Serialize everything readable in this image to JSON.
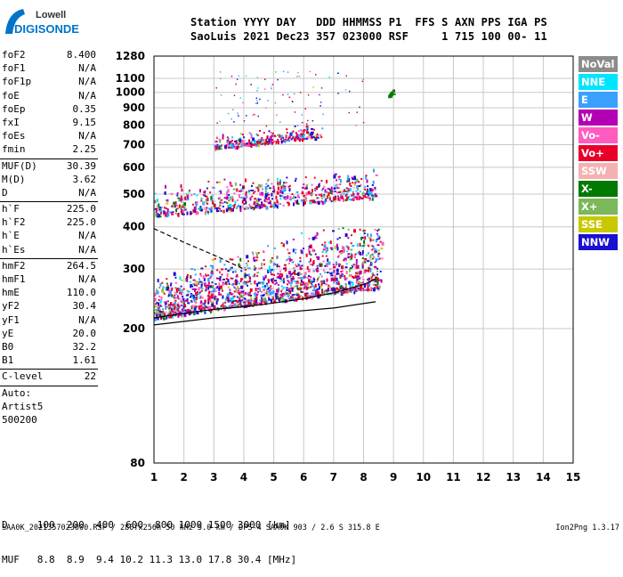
{
  "logo": {
    "line1": "Lowell",
    "line2": "DIGISONDE"
  },
  "header": {
    "line1": "Station YYYY DAY   DDD HHMMSS P1  FFS S AXN PPS IGA PS",
    "line2": "SaoLuis 2021 Dec23 357 023000 RSF     1 715 100 00- 11"
  },
  "params": {
    "group1": [
      {
        "name": "foF2",
        "value": "8.400"
      },
      {
        "name": "foF1",
        "value": "N/A"
      },
      {
        "name": "foF1p",
        "value": "N/A"
      },
      {
        "name": "foE",
        "value": "N/A"
      },
      {
        "name": "foEp",
        "value": "0.35"
      },
      {
        "name": "fxI",
        "value": "9.15"
      },
      {
        "name": "foEs",
        "value": "N/A"
      },
      {
        "name": "fmin",
        "value": "2.25"
      }
    ],
    "group2": [
      {
        "name": "MUF(D)",
        "value": "30.39"
      },
      {
        "name": "M(D)",
        "value": "3.62"
      },
      {
        "name": "D",
        "value": "N/A"
      }
    ],
    "group3": [
      {
        "name": "h`F",
        "value": "225.0"
      },
      {
        "name": "h`F2",
        "value": "225.0"
      },
      {
        "name": "h`E",
        "value": "N/A"
      },
      {
        "name": "h`Es",
        "value": "N/A"
      }
    ],
    "group4": [
      {
        "name": "hmF2",
        "value": "264.5"
      },
      {
        "name": "hmF1",
        "value": "N/A"
      },
      {
        "name": "hmE",
        "value": "110.0"
      },
      {
        "name": "yF2",
        "value": "30.4"
      },
      {
        "name": "yF1",
        "value": "N/A"
      },
      {
        "name": "yE",
        "value": "20.0"
      },
      {
        "name": "B0",
        "value": "32.2"
      },
      {
        "name": "B1",
        "value": "1.61"
      }
    ],
    "group5": [
      {
        "name": "C-level",
        "value": "22"
      }
    ]
  },
  "autoscale": {
    "line1": "Auto:",
    "line2": "Artist5",
    "line3": "500200"
  },
  "dmuf": {
    "line1": "D     100  200  400  600  800 1000 1500 3000 [km]",
    "line2": "MUF   8.8  8.9  9.4 10.2 11.3 13.0 17.8 30.4 [MHz]"
  },
  "footer": "SAA0K_2021357023000.RSF / 280fx256h 50 kHz 5.0 km / DPS-4 SAA0K 903 / 2.6 S 315.8 E",
  "version": "Ion2Png 1.3.17",
  "legend": [
    {
      "label": "NoVal",
      "color": "#8c8c8c"
    },
    {
      "label": "NNE",
      "color": "#00e5ff"
    },
    {
      "label": "E",
      "color": "#3aa0ff"
    },
    {
      "label": "W",
      "color": "#b400b4"
    },
    {
      "label": "Vo-",
      "color": "#ff5cc0"
    },
    {
      "label": "Vo+",
      "color": "#e8002a"
    },
    {
      "label": "SSW",
      "color": "#f5b0b0"
    },
    {
      "label": "X-",
      "color": "#007a00"
    },
    {
      "label": "X+",
      "color": "#7ab85a"
    },
    {
      "label": "SSE",
      "color": "#c8c800"
    },
    {
      "label": "NNW",
      "color": "#1a10d0"
    }
  ],
  "chart_data": {
    "type": "scatter",
    "title": "",
    "xlabel": "",
    "ylabel": "",
    "x_range": [
      1,
      15
    ],
    "y_range": [
      80,
      1280
    ],
    "y_scale": "log",
    "x_ticks": [
      "1",
      "2",
      "3",
      "4",
      "5",
      "6",
      "7",
      "8",
      "9",
      "10",
      "11",
      "12",
      "13",
      "14",
      "15"
    ],
    "y_ticks": [
      {
        "value": 80,
        "label": "80"
      },
      {
        "value": 200,
        "label": "200"
      },
      {
        "value": 300,
        "label": "300"
      },
      {
        "value": 400,
        "label": "400"
      },
      {
        "value": 500,
        "label": "500"
      },
      {
        "value": 600,
        "label": "600"
      },
      {
        "value": 700,
        "label": "700"
      },
      {
        "value": 800,
        "label": "800"
      },
      {
        "value": 900,
        "label": "900"
      },
      {
        "value": 1000,
        "label": "1000"
      },
      {
        "value": 1100,
        "label": "1100"
      },
      {
        "value": 1280,
        "label": "1280"
      }
    ],
    "grid": true,
    "traces": [
      {
        "name": "O-trace first hop",
        "x": [
          1.0,
          2.0,
          3.0,
          4.0,
          5.0,
          6.0,
          7.0,
          8.0,
          8.4
        ],
        "y": [
          215,
          222,
          228,
          232,
          238,
          245,
          255,
          270,
          280
        ]
      },
      {
        "name": "profile upper",
        "x": [
          1.0,
          2.0,
          3.0,
          4.0
        ],
        "y": [
          395,
          360,
          330,
          300
        ]
      },
      {
        "name": "profile lower",
        "x": [
          1.0,
          3.0,
          5.0,
          7.0,
          8.4
        ],
        "y": [
          205,
          215,
          222,
          230,
          240
        ]
      }
    ],
    "echo_regions": [
      {
        "x": [
          1.0,
          8.6
        ],
        "y": [
          215,
          400
        ],
        "note": "first hop"
      },
      {
        "x": [
          1.0,
          8.4
        ],
        "y": [
          430,
          600
        ],
        "note": "second hop"
      },
      {
        "x": [
          3.0,
          6.6
        ],
        "y": [
          680,
          800
        ],
        "note": "third hop"
      },
      {
        "x": [
          8.8,
          9.0
        ],
        "y": [
          975,
          985
        ],
        "note": "X-"
      }
    ]
  }
}
